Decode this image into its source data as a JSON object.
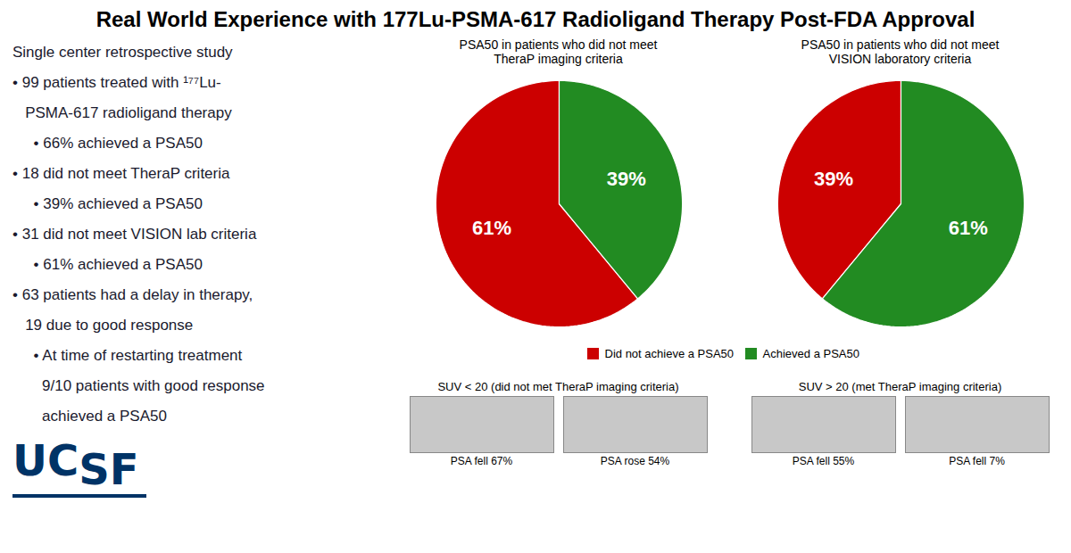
{
  "title": "Real World Experience with 177Lu-PSMA-617 Radioligand Therapy Post-FDA Approval",
  "annotations": {
    "panel": {
      "color": "#1a1a2e",
      "lines": [
        "Single center retrospective study",
        "• 99 patients treated with ¹⁷⁷Lu-",
        "   PSMA-617 radioligand therapy",
        "     • 66% achieved a PSA50",
        "• 18 did not meet TheraP criteria",
        "     • 39% achieved a PSA50",
        "• 31 did not meet VISION lab criteria",
        "     • 61% achieved a PSA50",
        "• 63 patients had a delay in therapy,",
        "   19 due to good response",
        "     • At time of restarting treatment",
        "       9/10 patients with good response",
        "       achieved a PSA50"
      ]
    },
    "logo": {
      "color": "#003366",
      "texts": [
        "UC",
        "SF"
      ]
    },
    "groups": [
      "SUV < 20 (did not met TheraP imaging criteria)",
      "SUV > 20 (met TheraP imaging criteria)"
    ],
    "scans": [
      "PSA fell 67%",
      "PSA rose 54%",
      "PSA fell 55%",
      "PSA fell 7%"
    ]
  },
  "chart_data": [
    {
      "type": "pie",
      "title": "PSA50 in patients who did not meet\nTheraP imaging criteria",
      "categories": [
        "Did not achieve a PSA50",
        "Achieved a PSA50"
      ],
      "values": [
        61,
        39
      ],
      "value_labels": [
        "61%",
        "39%"
      ],
      "colors": [
        "#cc0000",
        "#228B22"
      ],
      "data_labels": true,
      "legend": "bottom"
    },
    {
      "type": "pie",
      "title": "PSA50 in patients who did not meet\nVISION laboratory criteria",
      "categories": [
        "Did not achieve a PSA50",
        "Achieved a PSA50"
      ],
      "values": [
        39,
        61
      ],
      "value_labels": [
        "39%",
        "61%"
      ],
      "colors": [
        "#cc0000",
        "#228B22"
      ],
      "data_labels": true,
      "legend": "bottom"
    }
  ]
}
